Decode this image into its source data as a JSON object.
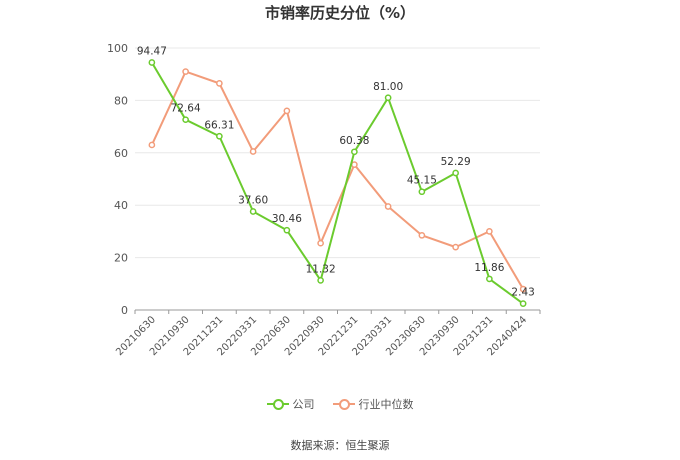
{
  "colors": {
    "company": "#6bcb2e",
    "industry": "#f29c7a",
    "grid": "#e8e8e8",
    "axis": "#999999",
    "text": "#555555"
  },
  "chart_data": {
    "type": "line",
    "title": "市销率历史分位（%）",
    "categories": [
      "20210630",
      "20210930",
      "20211231",
      "20220331",
      "20220630",
      "20220930",
      "20221231",
      "20230331",
      "20230630",
      "20230930",
      "20231231",
      "20240424"
    ],
    "ylim": [
      0,
      100
    ],
    "yticks": [
      0,
      20,
      40,
      60,
      80,
      100
    ],
    "grid": "horizontal",
    "legend_position": "bottom",
    "series": [
      {
        "name": "公司",
        "color_key": "company",
        "values": [
          94.47,
          72.64,
          66.31,
          37.6,
          30.46,
          11.32,
          60.38,
          81.0,
          45.15,
          52.29,
          11.86,
          2.43
        ],
        "labels": [
          "94.47",
          "72.64",
          "66.31",
          "37.60",
          "30.46",
          "11.32",
          "60.38",
          "81.00",
          "45.15",
          "52.29",
          "11.86",
          "2.43"
        ]
      },
      {
        "name": "行业中位数",
        "color_key": "industry",
        "values": [
          63,
          91,
          86.5,
          60.5,
          76,
          25.5,
          55.5,
          39.5,
          28.5,
          24,
          30,
          8
        ]
      }
    ]
  },
  "source_text": "数据来源：恒生聚源"
}
